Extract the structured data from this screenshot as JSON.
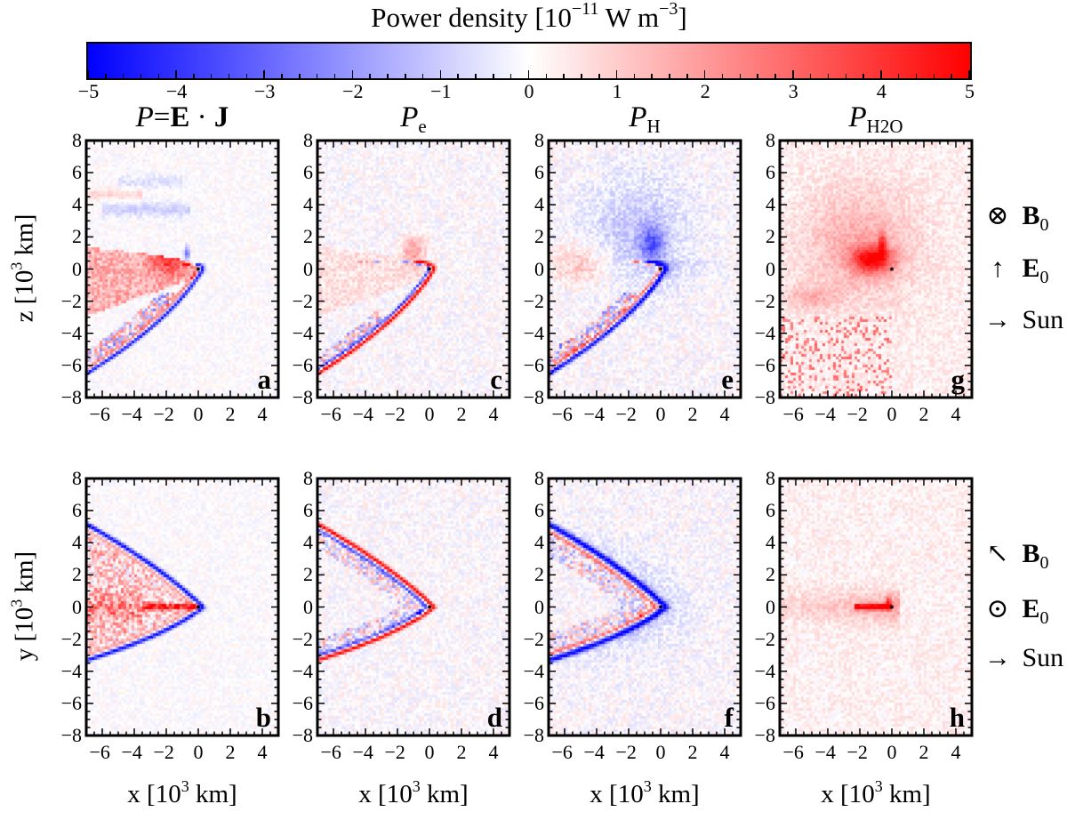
{
  "colorbar": {
    "title_parts": [
      "Power density [10",
      "−11",
      " W m",
      "−3",
      "]"
    ],
    "range": [
      -5,
      5
    ],
    "ticks": [
      "−5",
      "−4",
      "−3",
      "−2",
      "−1",
      "0",
      "1",
      "2",
      "3",
      "4",
      "5"
    ],
    "colormap": "bwr",
    "colors": {
      "min": "#0000ff",
      "mid": "#ffffff",
      "max": "#ff0000"
    }
  },
  "chart_data": [
    {
      "type": "heatmap",
      "label": "a",
      "title_parts": [
        {
          "text": "P",
          "style": "it"
        },
        {
          "text": "=",
          "style": ""
        },
        {
          "text": "E",
          "style": "bf"
        },
        {
          "text": " · ",
          "style": ""
        },
        {
          "text": "J",
          "style": "bf"
        }
      ],
      "xlim": [
        -7,
        5
      ],
      "ylim": [
        -8,
        8
      ],
      "xticks": [
        "−6",
        "−4",
        "−2",
        "0",
        "2",
        "4"
      ],
      "yticks": [
        "8",
        "6",
        "4",
        "2",
        "0",
        "−2",
        "−4",
        "−6",
        "−8"
      ],
      "ylabel_parts": [
        "z [10",
        "3",
        " km]"
      ]
    },
    {
      "type": "heatmap",
      "label": "c",
      "title_parts": [
        {
          "text": "P",
          "style": "it"
        },
        {
          "text": "e",
          "style": "sub"
        }
      ],
      "xlim": [
        -7,
        5
      ],
      "ylim": [
        -8,
        8
      ],
      "xticks": [
        "−6",
        "−4",
        "−2",
        "0",
        "2",
        "4"
      ],
      "yticks": [
        "8",
        "6",
        "4",
        "2",
        "0",
        "−2",
        "−4",
        "−6",
        "−8"
      ]
    },
    {
      "type": "heatmap",
      "label": "e",
      "title_parts": [
        {
          "text": "P",
          "style": "it"
        },
        {
          "text": "H",
          "style": "sub"
        },
        {
          "text": "+",
          "style": "subsup"
        }
      ],
      "xlim": [
        -7,
        5
      ],
      "ylim": [
        -8,
        8
      ],
      "xticks": [
        "−6",
        "−4",
        "−2",
        "0",
        "2",
        "4"
      ],
      "yticks": [
        "8",
        "6",
        "4",
        "2",
        "0",
        "−2",
        "−4",
        "−6",
        "−8"
      ]
    },
    {
      "type": "heatmap",
      "label": "g",
      "title_parts": [
        {
          "text": "P",
          "style": "it"
        },
        {
          "text": "H2O",
          "style": "sub"
        },
        {
          "text": "+",
          "style": "subsup"
        }
      ],
      "xlim": [
        -7,
        5
      ],
      "ylim": [
        -8,
        8
      ],
      "xticks": [
        "−6",
        "−4",
        "−2",
        "0",
        "2",
        "4"
      ],
      "yticks": [
        "8",
        "6",
        "4",
        "2",
        "0",
        "−2",
        "−4",
        "−6",
        "−8"
      ]
    },
    {
      "type": "heatmap",
      "label": "b",
      "xlim": [
        -7,
        5
      ],
      "ylim": [
        -8,
        8
      ],
      "xticks": [
        "−6",
        "−4",
        "−2",
        "0",
        "2",
        "4"
      ],
      "yticks": [
        "8",
        "6",
        "4",
        "2",
        "0",
        "−2",
        "−4",
        "−6",
        "−8"
      ],
      "ylabel_parts": [
        "y [10",
        "3",
        " km]"
      ],
      "xlabel_parts": [
        "x [10",
        "3",
        " km]"
      ]
    },
    {
      "type": "heatmap",
      "label": "d",
      "xlim": [
        -7,
        5
      ],
      "ylim": [
        -8,
        8
      ],
      "xticks": [
        "−6",
        "−4",
        "−2",
        "0",
        "2",
        "4"
      ],
      "yticks": [
        "8",
        "6",
        "4",
        "2",
        "0",
        "−2",
        "−4",
        "−6",
        "−8"
      ],
      "xlabel_parts": [
        "x [10",
        "3",
        " km]"
      ]
    },
    {
      "type": "heatmap",
      "label": "f",
      "xlim": [
        -7,
        5
      ],
      "ylim": [
        -8,
        8
      ],
      "xticks": [
        "−6",
        "−4",
        "−2",
        "0",
        "2",
        "4"
      ],
      "yticks": [
        "8",
        "6",
        "4",
        "2",
        "0",
        "−2",
        "−4",
        "−6",
        "−8"
      ],
      "xlabel_parts": [
        "x [10",
        "3",
        " km]"
      ]
    },
    {
      "type": "heatmap",
      "label": "h",
      "xlim": [
        -7,
        5
      ],
      "ylim": [
        -8,
        8
      ],
      "xticks": [
        "−6",
        "−4",
        "−2",
        "0",
        "2",
        "4"
      ],
      "yticks": [
        "8",
        "6",
        "4",
        "2",
        "0",
        "−2",
        "−4",
        "−6",
        "−8"
      ],
      "xlabel_parts": [
        "x [10",
        "3",
        " km]"
      ]
    }
  ],
  "annotations": {
    "top": [
      {
        "symbol": "⊗",
        "text": "B",
        "sub": "0",
        "bold": true
      },
      {
        "symbol": "↑",
        "text": "E",
        "sub": "0",
        "bold": true
      },
      {
        "symbol": "→",
        "text": "Sun",
        "sub": "",
        "bold": false
      }
    ],
    "bottom": [
      {
        "symbol": "↖",
        "text": "B",
        "sub": "0",
        "bold": true
      },
      {
        "symbol": "⊙",
        "text": "E",
        "sub": "0",
        "bold": true
      },
      {
        "symbol": "→",
        "text": "Sun",
        "sub": "",
        "bold": false
      }
    ]
  }
}
